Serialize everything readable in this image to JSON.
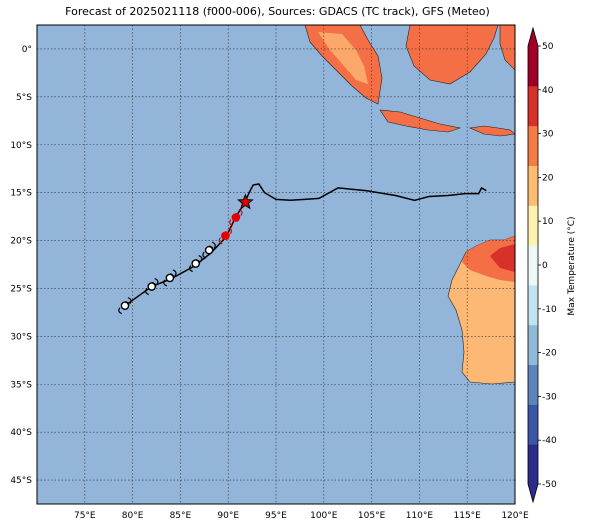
{
  "title": "Forecast of 2025021118 (f000-006), Sources: GDACS (TC track), GFS (Meteo)",
  "map": {
    "lon_range": [
      70,
      120
    ],
    "lat_range": [
      -47.5,
      2.5
    ],
    "ocean_color": "#92b5d9",
    "lon_ticks": [
      {
        "value": 75,
        "label": "75°E"
      },
      {
        "value": 80,
        "label": "80°E"
      },
      {
        "value": 85,
        "label": "85°E"
      },
      {
        "value": 90,
        "label": "90°E"
      },
      {
        "value": 95,
        "label": "95°E"
      },
      {
        "value": 100,
        "label": "100°E"
      },
      {
        "value": 105,
        "label": "105°E"
      },
      {
        "value": 110,
        "label": "110°E"
      },
      {
        "value": 115,
        "label": "115°E"
      },
      {
        "value": 120,
        "label": "120°E"
      }
    ],
    "lat_ticks": [
      {
        "value": 0,
        "label": "0°"
      },
      {
        "value": -5,
        "label": "5°S"
      },
      {
        "value": -10,
        "label": "10°S"
      },
      {
        "value": -15,
        "label": "15°S"
      },
      {
        "value": -20,
        "label": "20°S"
      },
      {
        "value": -25,
        "label": "25°S"
      },
      {
        "value": -30,
        "label": "30°S"
      },
      {
        "value": -35,
        "label": "35°S"
      },
      {
        "value": -40,
        "label": "40°S"
      },
      {
        "value": -45,
        "label": "45°S"
      }
    ]
  },
  "colorbar": {
    "label": "Max Temperature (°C)",
    "min": -50,
    "max": 50,
    "ticks": [
      50,
      40,
      30,
      20,
      10,
      0,
      -10,
      -20,
      -30,
      -40,
      -50
    ],
    "colors": [
      "#2c2a8c",
      "#3c56a6",
      "#5b86bd",
      "#90bad8",
      "#c3e2ef",
      "#edf8f6",
      "#fff2b0",
      "#fdbd70",
      "#f57c47",
      "#d7312a",
      "#a00025"
    ]
  },
  "track": {
    "past_path": [
      [
        117.0,
        -14.8
      ],
      [
        116.5,
        -14.5
      ],
      [
        116.2,
        -15.1
      ],
      [
        114.8,
        -15.1
      ],
      [
        113.0,
        -15.3
      ],
      [
        111.0,
        -15.4
      ],
      [
        109.5,
        -15.8
      ],
      [
        107.5,
        -15.3
      ],
      [
        104.5,
        -14.8
      ],
      [
        101.5,
        -14.5
      ],
      [
        99.5,
        -15.6
      ],
      [
        98.0,
        -15.7
      ],
      [
        96.5,
        -15.8
      ],
      [
        95.0,
        -15.7
      ],
      [
        93.8,
        -15.0
      ],
      [
        93.2,
        -14.1
      ],
      [
        92.6,
        -14.2
      ],
      [
        92.2,
        -15.0
      ],
      [
        91.8,
        -15.9
      ]
    ],
    "current": [
      91.8,
      -16.0
    ],
    "forecast_path": [
      [
        91.8,
        -16.0
      ],
      [
        90.8,
        -17.5
      ],
      [
        89.8,
        -19.6
      ],
      [
        88.2,
        -21.3
      ],
      [
        86.4,
        -22.7
      ],
      [
        84.0,
        -24.0
      ],
      [
        82.0,
        -24.8
      ],
      [
        79.2,
        -26.8
      ]
    ],
    "storm_points": [
      [
        90.8,
        -17.6
      ],
      [
        89.7,
        -19.5
      ]
    ],
    "symbol_points": [
      [
        88.0,
        -21.0
      ],
      [
        86.6,
        -22.4
      ],
      [
        83.9,
        -23.9
      ],
      [
        82.0,
        -24.8
      ],
      [
        79.2,
        -26.8
      ]
    ]
  }
}
